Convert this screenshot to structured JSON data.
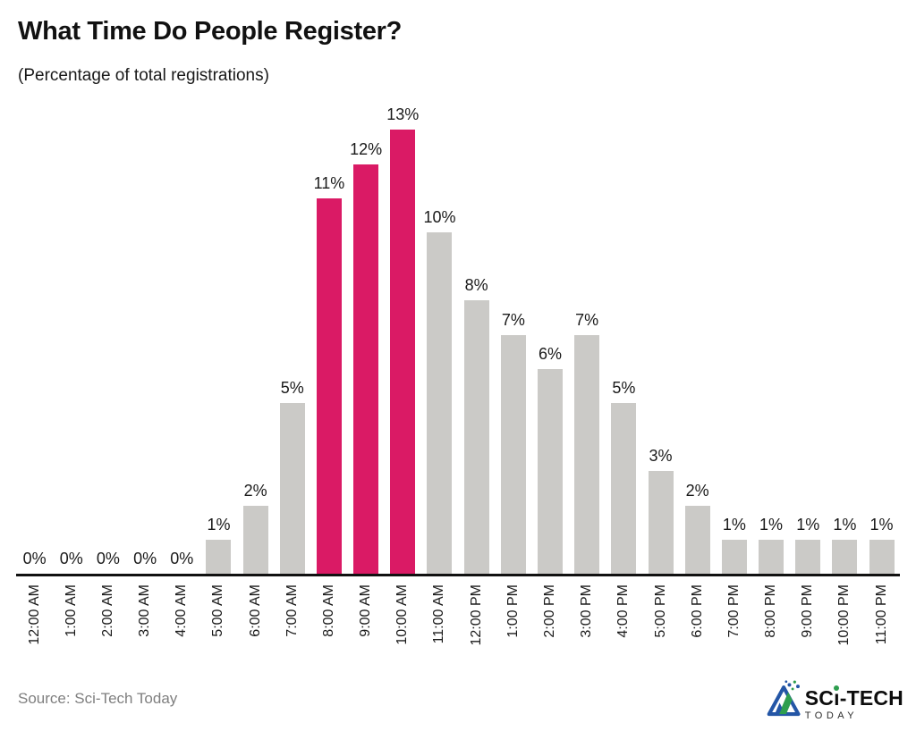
{
  "header": {
    "title": "What Time Do People Register?",
    "subtitle": "(Percentage of total registrations)"
  },
  "chart_data": {
    "type": "bar",
    "title": "What Time Do People Register?",
    "subtitle": "(Percentage of total registrations)",
    "categories": [
      "12:00 AM",
      "1:00 AM",
      "2:00 AM",
      "3:00 AM",
      "4:00 AM",
      "5:00 AM",
      "6:00 AM",
      "7:00 AM",
      "8:00 AM",
      "9:00 AM",
      "10:00 AM",
      "11:00 AM",
      "12:00 PM",
      "1:00 PM",
      "2:00 PM",
      "3:00 PM",
      "4:00 PM",
      "5:00 PM",
      "6:00 PM",
      "7:00 PM",
      "8:00 PM",
      "9:00 PM",
      "10:00 PM",
      "11:00 PM"
    ],
    "values": [
      0,
      0,
      0,
      0,
      0,
      1,
      2,
      5,
      11,
      12,
      13,
      10,
      8,
      7,
      6,
      7,
      5,
      3,
      2,
      1,
      1,
      1,
      1,
      1
    ],
    "unit": "%",
    "data_labels": [
      "0%",
      "0%",
      "0%",
      "0%",
      "0%",
      "1%",
      "2%",
      "5%",
      "11%",
      "12%",
      "13%",
      "10%",
      "8%",
      "7%",
      "6%",
      "7%",
      "5%",
      "3%",
      "2%",
      "1%",
      "1%",
      "1%",
      "1%",
      "1%"
    ],
    "highlighted_categories": [
      "8:00 AM",
      "9:00 AM",
      "10:00 AM"
    ],
    "bar_color": "#CBCAC7",
    "highlight_color": "#DA1A65",
    "axis_color": "#111111",
    "xlabel": "",
    "ylabel": "",
    "ylim": [
      0,
      13
    ],
    "grid": false,
    "legend": false,
    "x_tick_rotation": 90
  },
  "footer": {
    "source": "Source: Sci-Tech Today",
    "logo": {
      "part1": "SC",
      "part2": "i",
      "part3": "-TECH",
      "line2": "TODAY",
      "mark": "sci-tech-today-flask-mountain",
      "blue": "#2456A6",
      "green": "#2e9e4f"
    }
  }
}
